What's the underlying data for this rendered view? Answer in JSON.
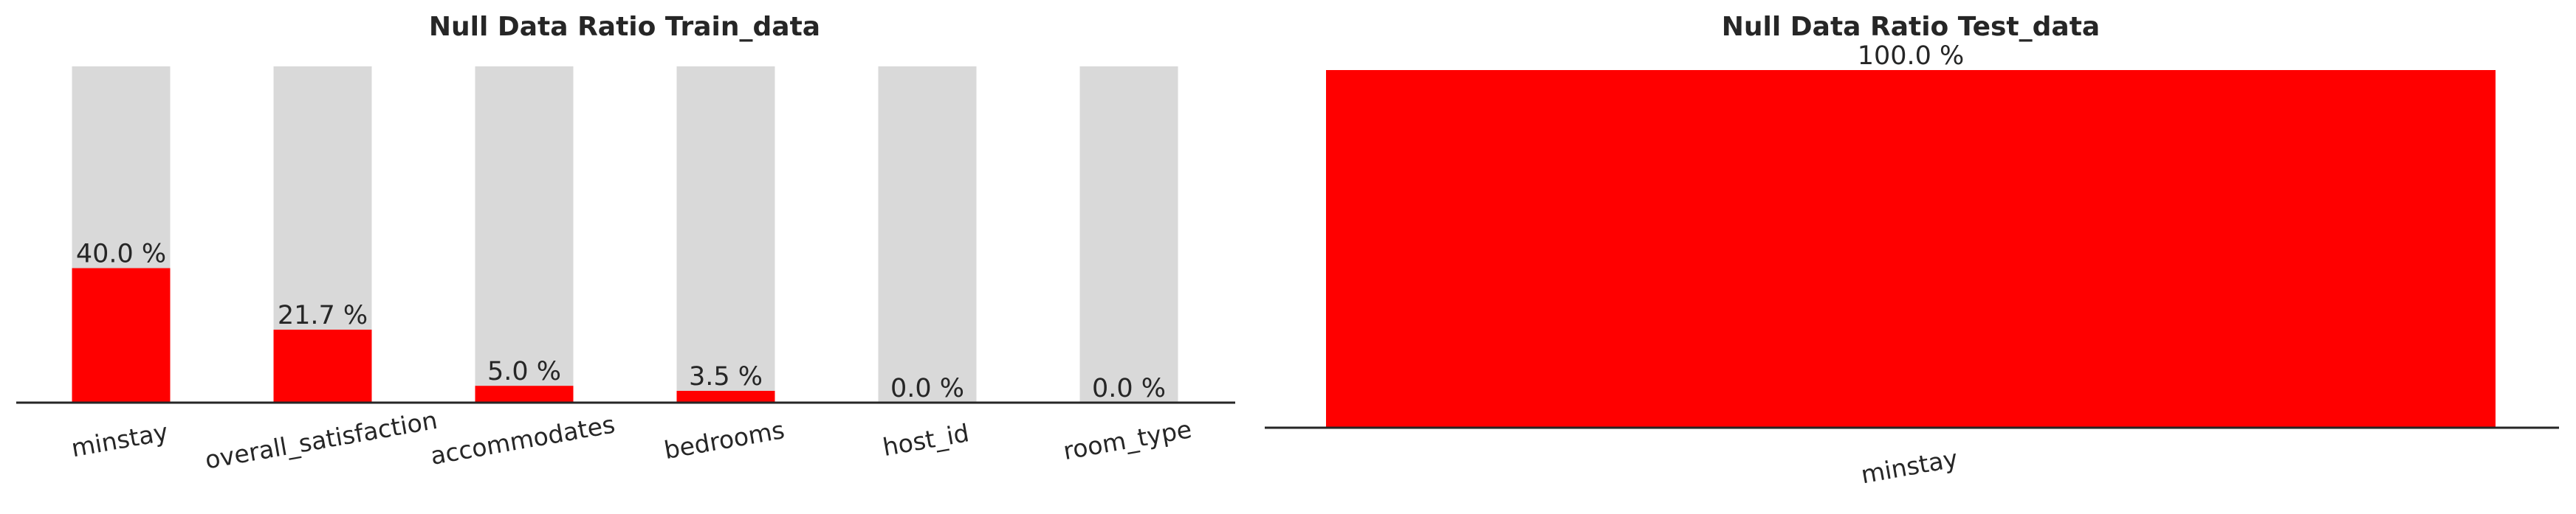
{
  "chart_data": [
    {
      "type": "bar",
      "title": "Null Data Ratio Train_data",
      "categories": [
        "minstay",
        "overall_satisfaction",
        "accommodates",
        "bedrooms",
        "host_id",
        "room_type"
      ],
      "values": [
        40.0,
        21.7,
        5.0,
        3.5,
        0.0,
        0.0
      ],
      "value_labels": [
        "40.0 %",
        "21.7 %",
        "5.0 %",
        "3.5 %",
        "0.0 %",
        "0.0 %"
      ],
      "background_value": 100,
      "ylim": [
        0,
        100
      ],
      "xlabel": "",
      "ylabel": "",
      "grid": false,
      "legend": "none",
      "tick_rotation_deg": -10
    },
    {
      "type": "bar",
      "title": "Null Data Ratio Test_data",
      "categories": [
        "minstay"
      ],
      "values": [
        100.0
      ],
      "value_labels": [
        "100.0 %"
      ],
      "background_value": 100,
      "ylim": [
        0,
        100
      ],
      "xlabel": "",
      "ylabel": "",
      "grid": false,
      "legend": "none",
      "tick_rotation_deg": -10
    }
  ],
  "colors": {
    "bar": "#ff0000",
    "background_bar": "#d9d9d9",
    "axis": "#262626",
    "text": "#262626"
  }
}
